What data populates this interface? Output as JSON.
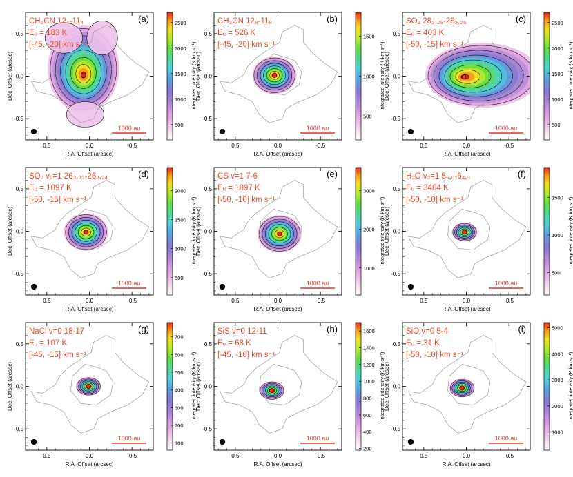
{
  "figure": {
    "xlabel": "R.A. Offset (arcsec)",
    "ylabel": "Dec. Offset (arcsec)",
    "cbar_label": "Integrated intensity (K km s⁻¹)",
    "scalebar_label": "1000 au",
    "title_color": "#f04a2c",
    "scalebar_color": "#e8352a"
  },
  "chart_data": [
    {
      "type": "heatmap",
      "panel": "(a)",
      "line_label": "CH₃CN 12₄-11₄",
      "eu": "Eᵤ = 183 K",
      "vrange": "[-45, -20] km s⁻¹",
      "xlim": [
        0.75,
        -0.75
      ],
      "ylim": [
        -0.75,
        0.75
      ],
      "xticks": [
        0.5,
        0.0,
        -0.5
      ],
      "xtick_labels": [
        "0.5",
        "0.0",
        "-0.5"
      ],
      "yticks": [
        0.5,
        0.0,
        -0.5
      ],
      "ytick_labels": [
        "0.5",
        "0.0",
        "-0.5"
      ],
      "cbar_ticks": [
        500,
        1000,
        1500,
        2000,
        2500
      ],
      "cbar_tick_labels": [
        "500",
        "1000",
        "1500",
        "2000",
        "2500"
      ],
      "cbar_min": 200,
      "cbar_max": 2700,
      "peak": [
        0.07,
        0.01
      ],
      "peak_norm": 1.0,
      "extent": "large",
      "shape": "bipolar-lobes"
    },
    {
      "type": "heatmap",
      "panel": "(b)",
      "line_label": "CH₃CN 12₈-11₈",
      "eu": "Eᵤ = 526 K",
      "vrange": "[-45, -20] km s⁻¹",
      "xlim": [
        0.75,
        -0.75
      ],
      "ylim": [
        -0.75,
        0.75
      ],
      "xticks": [
        0.5,
        0.0,
        -0.5
      ],
      "xtick_labels": [
        "0.5",
        "0.0",
        "-0.5"
      ],
      "yticks": [
        0.5,
        0.0,
        -0.5
      ],
      "ytick_labels": [
        "0.5",
        "0.0",
        "-0.5"
      ],
      "cbar_ticks": [
        500,
        1000,
        1500
      ],
      "cbar_tick_labels": [
        "500",
        "1000",
        "1500"
      ],
      "cbar_min": 200,
      "cbar_max": 1800,
      "peak": [
        0.04,
        0.01
      ],
      "peak_norm": 1.0,
      "extent": "medium",
      "shape": "compact"
    },
    {
      "type": "heatmap",
      "panel": "(c)",
      "line_label": "SO₂ 28₃,₂₅-28₂,₂₆",
      "eu": "Eᵤ = 403 K",
      "vrange": "[-50, -15] km s⁻¹",
      "xlim": [
        0.75,
        -0.75
      ],
      "ylim": [
        -0.75,
        0.75
      ],
      "xticks": [
        0.5,
        0.0,
        -0.5
      ],
      "xtick_labels": [
        "0.5",
        "0.0",
        "-0.5"
      ],
      "yticks": [
        0.5,
        0.0,
        -0.5
      ],
      "ytick_labels": [
        "0.5",
        "0.0",
        "-0.5"
      ],
      "cbar_ticks": [
        500,
        1000,
        1500,
        2000,
        2500
      ],
      "cbar_tick_labels": [
        "500",
        "1000",
        "1500",
        "2000",
        "2500"
      ],
      "cbar_min": 200,
      "cbar_max": 2700,
      "peak": [
        0.03,
        -0.01
      ],
      "peak_norm": 1.0,
      "extent": "large",
      "shape": "elongated-west"
    },
    {
      "type": "heatmap",
      "panel": "(d)",
      "line_label": "SO₂ v₂=1 26₃,₂₃-26₂,₂₄",
      "eu": "Eᵤ = 1097 K",
      "vrange": "[-50, -15] km s⁻¹",
      "xlim": [
        0.75,
        -0.75
      ],
      "ylim": [
        -0.75,
        0.75
      ],
      "xticks": [
        0.5,
        0.0,
        -0.5
      ],
      "xtick_labels": [
        "0.5",
        "0.0",
        "-0.5"
      ],
      "yticks": [
        0.5,
        0.0,
        -0.5
      ],
      "ytick_labels": [
        "0.5",
        "0.0",
        "-0.5"
      ],
      "cbar_ticks": [
        500,
        1000,
        1500,
        2000
      ],
      "cbar_tick_labels": [
        "500",
        "1000",
        "1500",
        "2000"
      ],
      "cbar_min": 200,
      "cbar_max": 2400,
      "peak": [
        0.04,
        -0.01
      ],
      "peak_norm": 1.0,
      "extent": "medium",
      "shape": "compact"
    },
    {
      "type": "heatmap",
      "panel": "(e)",
      "line_label": "CS v=1 7-6",
      "eu": "Eᵤ = 1897 K",
      "vrange": "[-50, -10] km s⁻¹",
      "xlim": [
        0.75,
        -0.75
      ],
      "ylim": [
        -0.75,
        0.75
      ],
      "xticks": [
        0.5,
        0.0,
        -0.5
      ],
      "xtick_labels": [
        "0.5",
        "0.0",
        "-0.5"
      ],
      "yticks": [
        0.5,
        0.0,
        -0.5
      ],
      "ytick_labels": [
        "0.5",
        "0.0",
        "-0.5"
      ],
      "cbar_ticks": [
        1000,
        2000,
        3000
      ],
      "cbar_tick_labels": [
        "1000",
        "2000",
        "3000"
      ],
      "cbar_min": 300,
      "cbar_max": 3600,
      "peak": [
        -0.02,
        -0.03
      ],
      "peak_norm": 1.0,
      "extent": "medium",
      "shape": "compact"
    },
    {
      "type": "heatmap",
      "panel": "(f)",
      "line_label": "H₂O v₂=1 5₅,₀-6₄,₃",
      "eu": "Eᵤ = 3464 K",
      "vrange": "[-50, -10] km s⁻¹",
      "xlim": [
        0.75,
        -0.75
      ],
      "ylim": [
        -0.75,
        0.75
      ],
      "xticks": [
        0.5,
        0.0,
        -0.5
      ],
      "xtick_labels": [
        "0.5",
        "0.0",
        "-0.5"
      ],
      "yticks": [
        0.5,
        0.0,
        -0.5
      ],
      "ytick_labels": [
        "0.5",
        "0.0",
        "-0.5"
      ],
      "cbar_ticks": [
        500,
        1000,
        1500
      ],
      "cbar_tick_labels": [
        "500",
        "1000",
        "1500"
      ],
      "cbar_min": 200,
      "cbar_max": 1900,
      "peak": [
        0.02,
        -0.01
      ],
      "peak_norm": 1.0,
      "extent": "small",
      "shape": "compact"
    },
    {
      "type": "heatmap",
      "panel": "(g)",
      "line_label": "NaCl v=0 18-17",
      "eu": "Eᵤ = 107 K",
      "vrange": "[-45, -15] km s⁻¹",
      "xlim": [
        0.75,
        -0.75
      ],
      "ylim": [
        -0.75,
        0.75
      ],
      "xticks": [
        0.5,
        0.0,
        -0.5
      ],
      "xtick_labels": [
        "0.5",
        "0.0",
        "-0.5"
      ],
      "yticks": [
        0.5,
        0.0,
        -0.5
      ],
      "ytick_labels": [
        "0.5",
        "0.0",
        "-0.5"
      ],
      "cbar_ticks": [
        100,
        200,
        300,
        400,
        500,
        600,
        700
      ],
      "cbar_tick_labels": [
        "100",
        "200",
        "300",
        "400",
        "500",
        "600",
        "700"
      ],
      "cbar_min": 60,
      "cbar_max": 780,
      "peak": [
        0.01,
        0.0
      ],
      "peak_norm": 1.0,
      "extent": "small",
      "shape": "compact"
    },
    {
      "type": "heatmap",
      "panel": "(h)",
      "line_label": "SiS v=0 12-11",
      "eu": "Eᵤ = 68 K",
      "vrange": "[-45, -10] km s⁻¹",
      "xlim": [
        0.75,
        -0.75
      ],
      "ylim": [
        -0.75,
        0.75
      ],
      "xticks": [
        0.5,
        0.0,
        -0.5
      ],
      "xtick_labels": [
        "0.5",
        "0.0",
        "-0.5"
      ],
      "yticks": [
        0.5,
        0.0,
        -0.5
      ],
      "ytick_labels": [
        "0.5",
        "0.0",
        "-0.5"
      ],
      "cbar_ticks": [
        200,
        400,
        600,
        800,
        1000,
        1200,
        1400,
        1600
      ],
      "cbar_tick_labels": [
        "200",
        "400",
        "600",
        "800",
        "1000",
        "1200",
        "1400",
        "1600"
      ],
      "cbar_min": 180,
      "cbar_max": 1700,
      "peak": [
        0.07,
        -0.05
      ],
      "peak_norm": 1.0,
      "extent": "small",
      "shape": "compact"
    },
    {
      "type": "heatmap",
      "panel": "(i)",
      "line_label": "SiO v=0 5-4",
      "eu": "Eᵤ = 31 K",
      "vrange": "[-50, -10] km s⁻¹",
      "xlim": [
        0.75,
        -0.75
      ],
      "ylim": [
        -0.75,
        0.75
      ],
      "xticks": [
        0.5,
        0.0,
        -0.5
      ],
      "xtick_labels": [
        "0.5",
        "0.0",
        "-0.5"
      ],
      "yticks": [
        0.5,
        0.0,
        -0.5
      ],
      "ytick_labels": [
        "0.5",
        "0.0",
        "-0.5"
      ],
      "cbar_ticks": [
        1000,
        2000,
        3000,
        4000,
        5000
      ],
      "cbar_tick_labels": [
        "1000",
        "2000",
        "3000",
        "4000",
        "5000"
      ],
      "cbar_min": 300,
      "cbar_max": 5200,
      "peak": [
        0.05,
        -0.02
      ],
      "peak_norm": 1.0,
      "extent": "small",
      "shape": "compact"
    }
  ]
}
